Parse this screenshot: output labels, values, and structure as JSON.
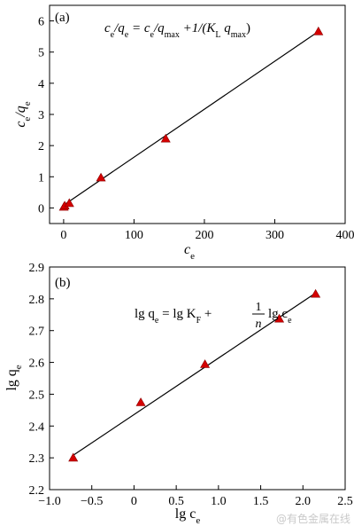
{
  "watermark": "@有色金属在线",
  "chart_data": [
    {
      "panel_label": "(a)",
      "type": "scatter",
      "marker": "triangle",
      "marker_color": "#d40000",
      "fit_line": true,
      "x": [
        0.3,
        1.5,
        8,
        53,
        145,
        362
      ],
      "y": [
        0.03,
        0.07,
        0.15,
        0.97,
        2.22,
        5.66
      ],
      "fit": [
        [
          2,
          0.12
        ],
        [
          362,
          5.66
        ]
      ],
      "xlim": [
        -20,
        400
      ],
      "ylim": [
        -0.5,
        6.5
      ],
      "xticks": [
        0,
        100,
        200,
        300,
        400
      ],
      "yticks": [
        0,
        1,
        2,
        3,
        4,
        5,
        6
      ],
      "xtick_labels": [
        "0",
        "100",
        "200",
        "300",
        "400"
      ],
      "ytick_labels": [
        "0",
        "1",
        "2",
        "3",
        "4",
        "5",
        "6"
      ],
      "xlabel": "c",
      "xlabel_sub": "e",
      "ylabel": "c",
      "ylabel_sub": "e",
      "ylabel_rest": "/q",
      "ylabel_sub2": "e",
      "equation": {
        "t1": "c",
        "s1": "e",
        "t2": "/q",
        "s2": "e",
        "t3": " = c",
        "s3": "e",
        "t4": "/q",
        "s4": "max",
        "t5": " +1/(K",
        "s5": "L",
        "t6": " q",
        "s6": "max",
        "t7": ")"
      }
    },
    {
      "panel_label": "(b)",
      "type": "scatter",
      "marker": "triangle",
      "marker_color": "#d40000",
      "fit_line": true,
      "x": [
        -0.72,
        0.08,
        0.84,
        1.72,
        2.15
      ],
      "y": [
        2.3,
        2.474,
        2.594,
        2.737,
        2.815
      ],
      "fit": [
        [
          -0.72,
          2.308
        ],
        [
          2.15,
          2.818
        ]
      ],
      "xlim": [
        -1.0,
        2.5
      ],
      "ylim": [
        2.2,
        2.9
      ],
      "xticks": [
        -1.0,
        -0.5,
        0.0,
        0.5,
        1.0,
        1.5,
        2.0,
        2.5
      ],
      "yticks": [
        2.2,
        2.3,
        2.4,
        2.5,
        2.6,
        2.7,
        2.8,
        2.9
      ],
      "xtick_labels": [
        "−1.0",
        "−0.5",
        "0",
        "0.5",
        "1.0",
        "1.5",
        "2.0",
        "2.5"
      ],
      "ytick_labels": [
        "2.2",
        "2.3",
        "2.4",
        "2.5",
        "2.6",
        "2.7",
        "2.8",
        "2.9"
      ],
      "xlabel": "lg c",
      "xlabel_sub": "e",
      "ylabel": "lg q",
      "ylabel_sub": "e",
      "equation": {
        "a": "lg q",
        "as": "e",
        "b": " = lg K",
        "bs": "F",
        "c": " +",
        "num": "1",
        "den": "n",
        "d": "lg c",
        "ds": "e"
      }
    }
  ]
}
